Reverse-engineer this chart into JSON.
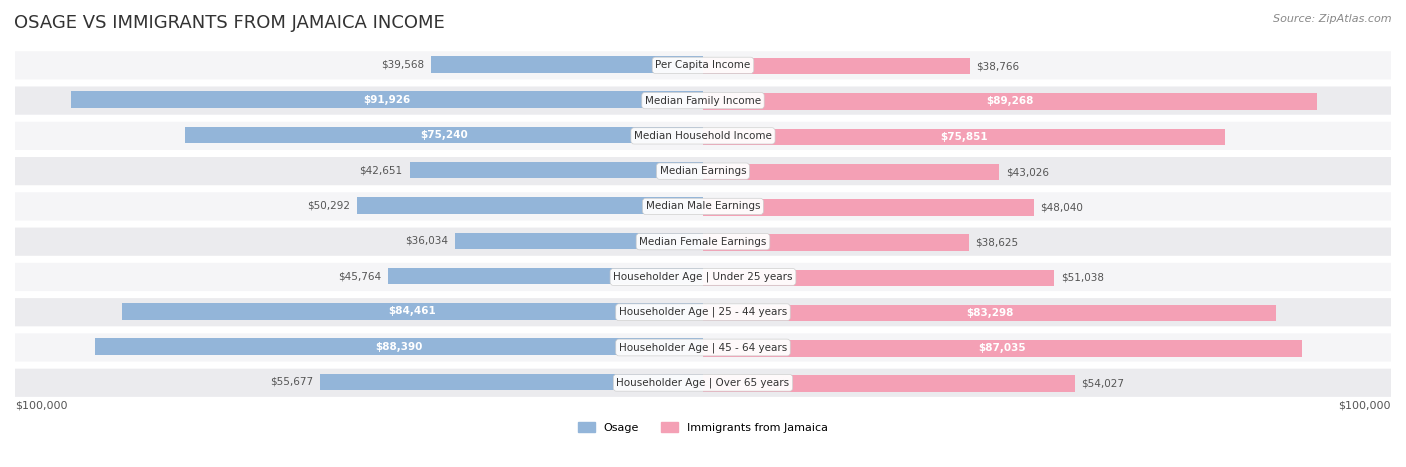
{
  "title": "OSAGE VS IMMIGRANTS FROM JAMAICA INCOME",
  "source": "Source: ZipAtlas.com",
  "categories": [
    "Per Capita Income",
    "Median Family Income",
    "Median Household Income",
    "Median Earnings",
    "Median Male Earnings",
    "Median Female Earnings",
    "Householder Age | Under 25 years",
    "Householder Age | 25 - 44 years",
    "Householder Age | 45 - 64 years",
    "Householder Age | Over 65 years"
  ],
  "osage_values": [
    39568,
    91926,
    75240,
    42651,
    50292,
    36034,
    45764,
    84461,
    88390,
    55677
  ],
  "jamaica_values": [
    38766,
    89268,
    75851,
    43026,
    48040,
    38625,
    51038,
    83298,
    87035,
    54027
  ],
  "osage_labels": [
    "$39,568",
    "$91,926",
    "$75,240",
    "$42,651",
    "$50,292",
    "$36,034",
    "$45,764",
    "$84,461",
    "$88,390",
    "$55,677"
  ],
  "jamaica_labels": [
    "$38,766",
    "$89,268",
    "$75,851",
    "$43,026",
    "$48,040",
    "$38,625",
    "$51,038",
    "$83,298",
    "$87,035",
    "$54,027"
  ],
  "max_value": 100000,
  "osage_bar_color": "#93b5d9",
  "osage_bar_color_dark": "#6a9dc8",
  "jamaica_bar_color": "#f4a0b5",
  "jamaica_bar_color_dark": "#e87aa0",
  "background_color": "#ffffff",
  "row_bg_color": "#f0f0f0",
  "row_alt_bg_color": "#ffffff",
  "legend_osage": "Osage",
  "legend_jamaica": "Immigrants from Jamaica",
  "xlabel_left": "$100,000",
  "xlabel_right": "$100,000"
}
